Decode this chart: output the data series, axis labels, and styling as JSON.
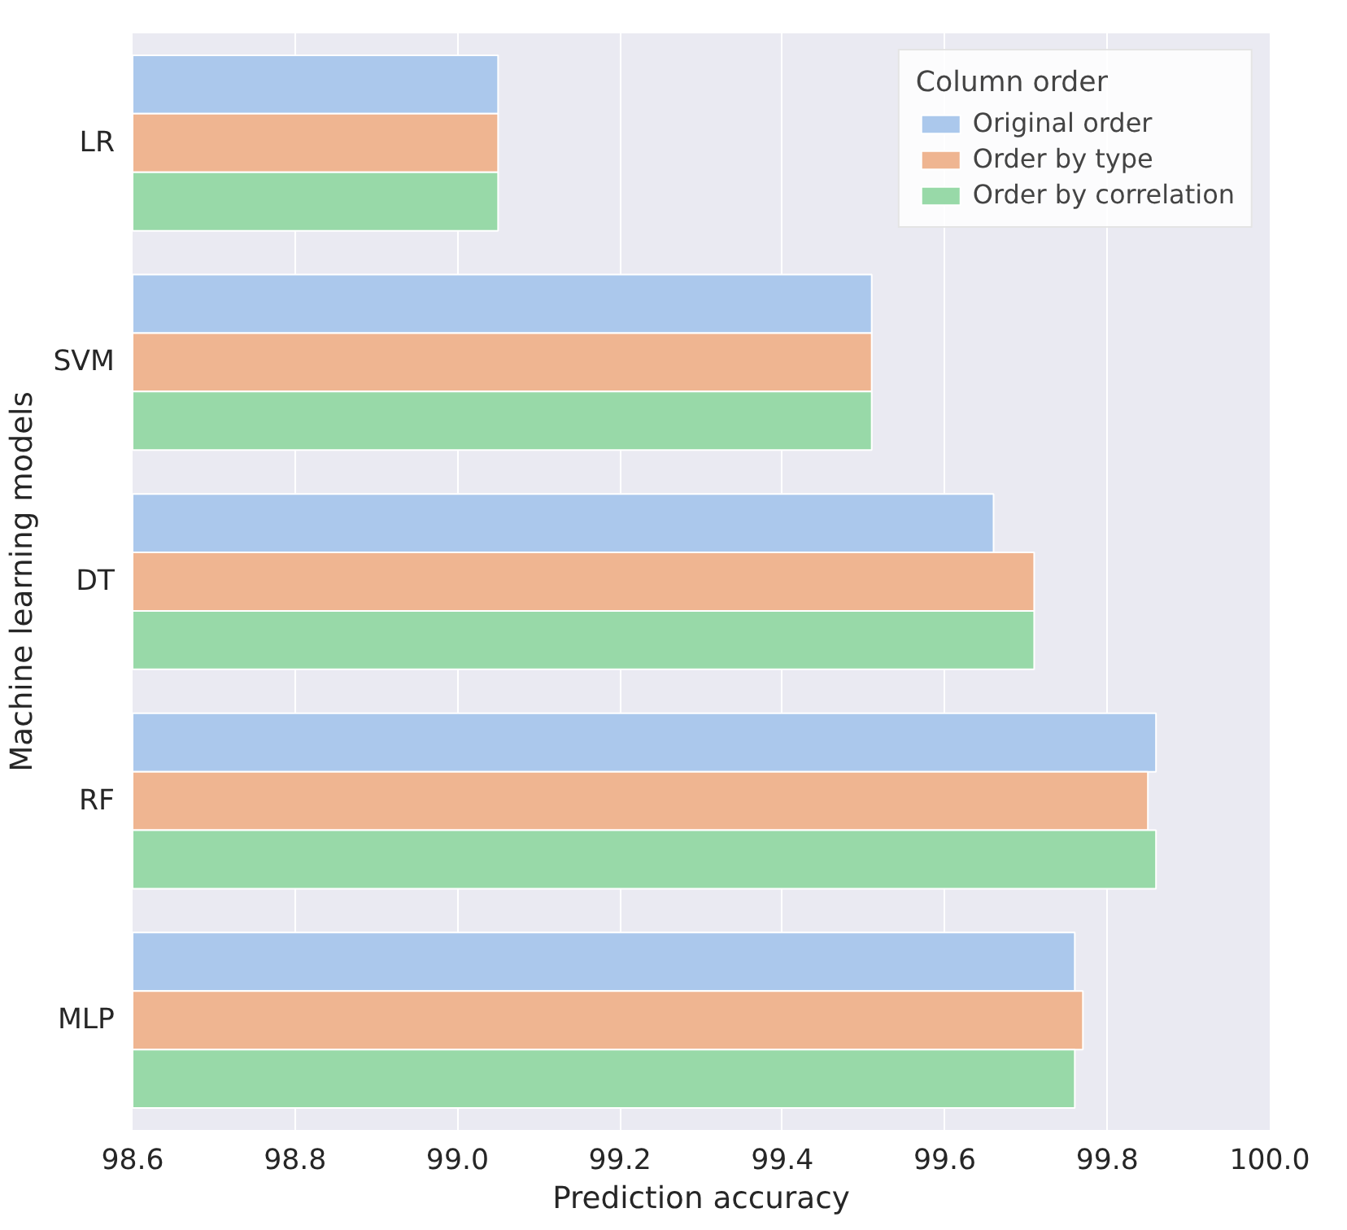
{
  "chart_data": {
    "type": "bar",
    "orientation": "horizontal",
    "xlabel": "Prediction accuracy",
    "ylabel": "Machine learning models",
    "legend_title": "Column order",
    "categories": [
      "LR",
      "SVM",
      "DT",
      "RF",
      "MLP"
    ],
    "series": [
      {
        "name": "Original order",
        "color": "#abc8ec",
        "values": [
          99.05,
          99.51,
          99.66,
          99.86,
          99.76
        ]
      },
      {
        "name": "Order by type",
        "color": "#efb591",
        "values": [
          99.05,
          99.51,
          99.71,
          99.85,
          99.77
        ]
      },
      {
        "name": "Order by correlation",
        "color": "#98d9a8",
        "values": [
          99.05,
          99.51,
          99.71,
          99.86,
          99.76
        ]
      }
    ],
    "xlim": [
      98.6,
      100.0
    ],
    "xticks": [
      98.6,
      98.8,
      {
        "value": 99,
        "label": "99.0"
      },
      99.2,
      99.4,
      99.6,
      99.8,
      {
        "value": 100,
        "label": "100.0"
      }
    ],
    "grid": "x",
    "legend": "top right"
  }
}
